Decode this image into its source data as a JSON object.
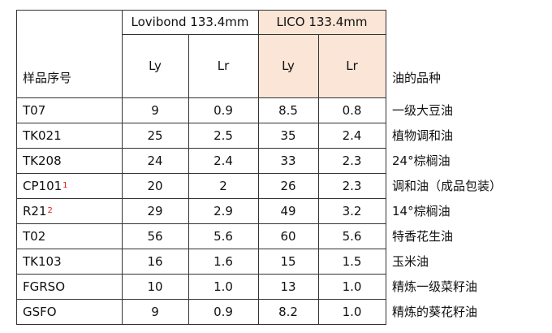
{
  "table": {
    "header": {
      "sample": "样品序号",
      "groups": [
        "Lovibond 133.4mm",
        "LICO 133.4mm"
      ],
      "subcolumns": [
        "Ly",
        "Lr",
        "Ly",
        "Lr"
      ],
      "oil": "油的品种"
    },
    "rows": [
      {
        "sample": "T07",
        "values": [
          "9",
          "0.9",
          "8.5",
          "0.8"
        ],
        "oil": "一级大豆油"
      },
      {
        "sample": "TK021",
        "values": [
          "25",
          "2.5",
          "35",
          "2.4"
        ],
        "oil": "植物调和油"
      },
      {
        "sample": "TK208",
        "values": [
          "24",
          "2.4",
          "33",
          "2.3"
        ],
        "oil": "24°棕榈油"
      },
      {
        "sample": "CP101",
        "note": "1",
        "values": [
          "20",
          "2",
          "26",
          "2.3"
        ],
        "oil": "调和油（成品包装）"
      },
      {
        "sample": "R21",
        "note": "2",
        "values": [
          "29",
          "2.9",
          "49",
          "3.2"
        ],
        "oil": "14°棕榈油"
      },
      {
        "sample": "T02",
        "values": [
          "56",
          "5.6",
          "60",
          "5.6"
        ],
        "oil": "特香花生油"
      },
      {
        "sample": "TK103",
        "values": [
          "16",
          "1.6",
          "15",
          "1.5"
        ],
        "oil": "玉米油"
      },
      {
        "sample": "FGRSO",
        "values": [
          "10",
          "1.0",
          "13",
          "1.0"
        ],
        "oil": "精炼一级菜籽油"
      },
      {
        "sample": "GSFO",
        "values": [
          "9",
          "0.9",
          "8.2",
          "1.0"
        ],
        "oil": "精炼的葵花籽油"
      }
    ]
  }
}
